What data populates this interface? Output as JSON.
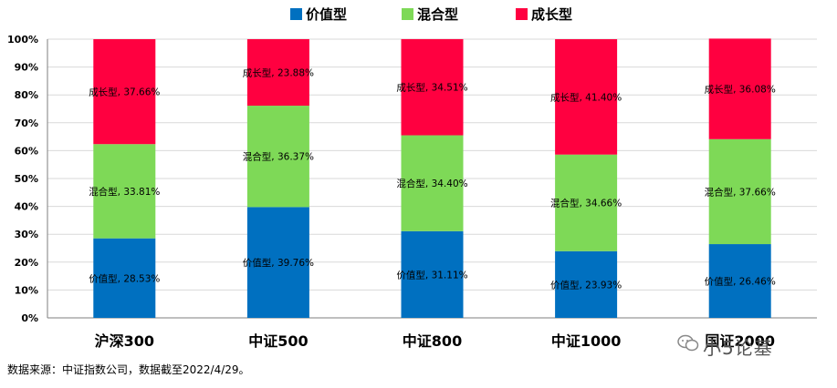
{
  "chart_data": {
    "type": "bar",
    "stacked": true,
    "categories": [
      "沪深300",
      "中证500",
      "中证800",
      "中证1000",
      "国证2000"
    ],
    "series": [
      {
        "name": "价值型",
        "color": "#0070C0",
        "values": [
          28.53,
          39.76,
          31.11,
          23.93,
          26.46
        ],
        "labels": [
          "价值型, 28.53%",
          "价值型, 39.76%",
          "价值型, 31.11%",
          "价值型, 23.93%",
          "价值型, 26.46%"
        ]
      },
      {
        "name": "混合型",
        "color": "#7ED957",
        "values": [
          33.81,
          36.37,
          34.4,
          34.66,
          37.66
        ],
        "labels": [
          "混合型, 33.81%",
          "混合型, 36.37%",
          "混合型, 34.40%",
          "混合型, 34.66%",
          "混合型, 37.66%"
        ]
      },
      {
        "name": "成长型",
        "color": "#FF0040",
        "values": [
          37.66,
          23.88,
          34.51,
          41.4,
          36.08
        ],
        "labels": [
          "成长型, 37.66%",
          "成长型, 23.88%",
          "成长型, 34.51%",
          "成长型, 41.40%",
          "成长型, 36.08%"
        ]
      }
    ],
    "ylim": [
      0,
      100
    ],
    "yticks": [
      "0%",
      "10%",
      "20%",
      "30%",
      "40%",
      "50%",
      "60%",
      "70%",
      "80%",
      "90%",
      "100%"
    ],
    "grid": true,
    "legend_position": "top"
  },
  "footer": {
    "source": "数据来源：中证指数公司，数据截至2022/4/29。",
    "watermark": "小5论基"
  }
}
